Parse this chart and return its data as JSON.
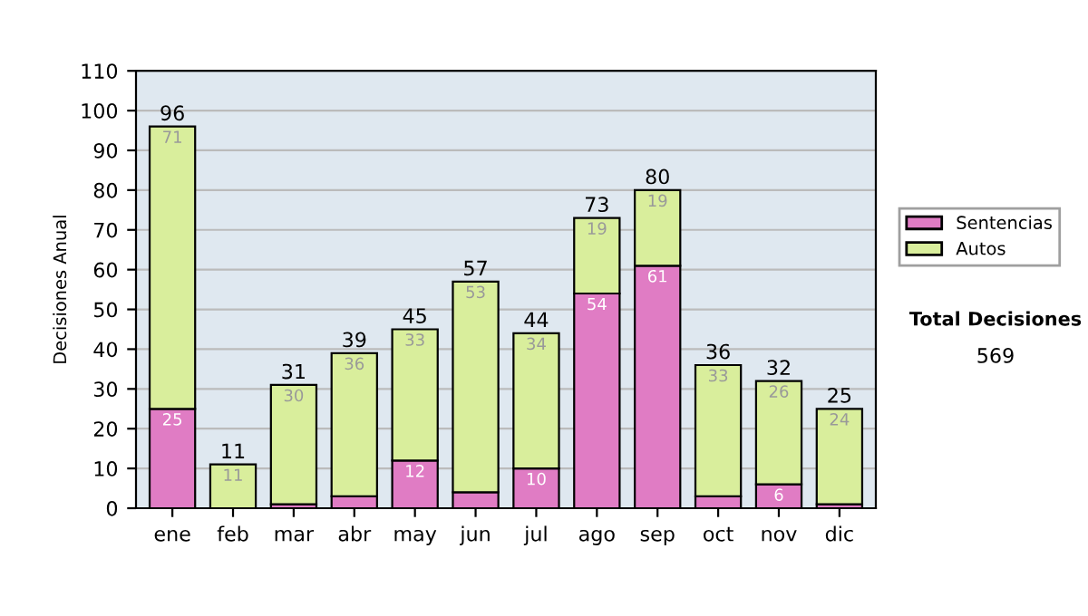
{
  "chart_data": {
    "type": "bar",
    "stacked": true,
    "ylabel": "Decisiones Anual",
    "categories": [
      "ene",
      "feb",
      "mar",
      "abr",
      "may",
      "jun",
      "jul",
      "ago",
      "sep",
      "oct",
      "nov",
      "dic"
    ],
    "series": [
      {
        "name": "Sentencias",
        "color": "#e07cc4",
        "values": [
          25,
          0,
          1,
          3,
          12,
          4,
          10,
          54,
          61,
          3,
          6,
          1
        ],
        "value_labels": [
          "25",
          null,
          null,
          null,
          "12",
          null,
          "10",
          "54",
          "61",
          null,
          "6",
          null
        ]
      },
      {
        "name": "Autos",
        "color": "#d9ee9c",
        "values": [
          71,
          11,
          30,
          36,
          33,
          53,
          34,
          19,
          19,
          33,
          26,
          24
        ],
        "value_labels": [
          "71",
          "11",
          "30",
          "36",
          "33",
          "53",
          "34",
          "19",
          "19",
          "33",
          "26",
          "24"
        ]
      }
    ],
    "totals": [
      "96",
      "11",
      "31",
      "39",
      "45",
      "57",
      "44",
      "73",
      "80",
      "36",
      "32",
      "25"
    ],
    "ylim": [
      0,
      110
    ],
    "yticks": [
      0,
      10,
      20,
      30,
      40,
      50,
      60,
      70,
      80,
      90,
      100,
      110
    ],
    "grid": "y",
    "legend": "right",
    "annotations": [
      "Total Decisiones",
      "569"
    ]
  }
}
